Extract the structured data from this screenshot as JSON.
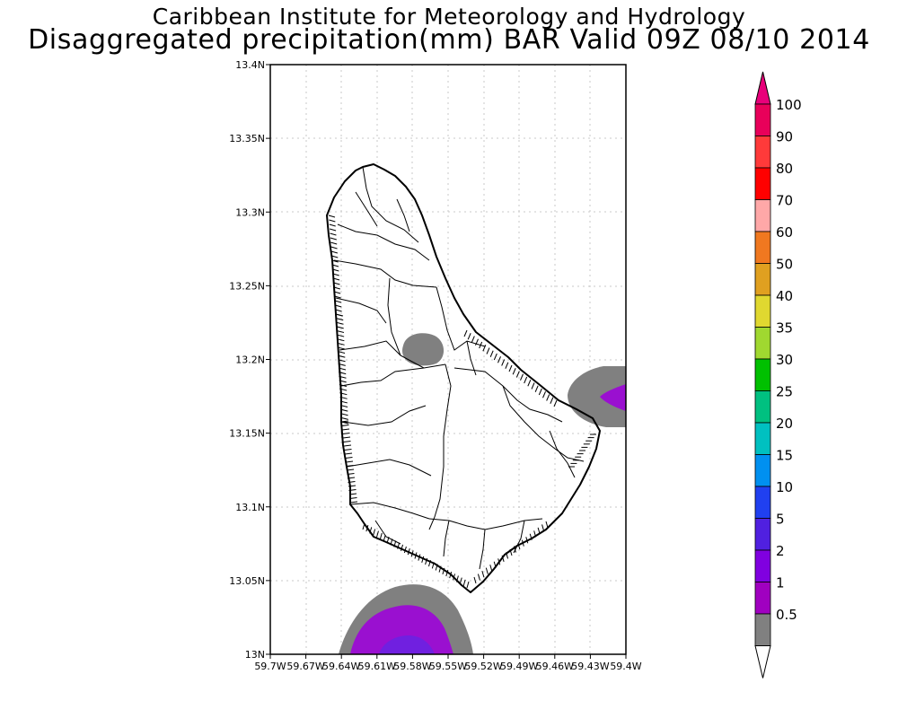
{
  "title_line1": "Caribbean Institute for Meteorology and Hydrology",
  "title_line2": "Disaggregated precipitation(mm) BAR Valid 09Z 08/10 2014",
  "lat_labels": [
    "13.4N",
    "13.35N",
    "13.3N",
    "13.25N",
    "13.2N",
    "13.15N",
    "13.1N",
    "13.05N",
    "13N"
  ],
  "lon_labels": [
    "59.7W",
    "59.67W",
    "59.64W",
    "59.61W",
    "59.58W",
    "59.55W",
    "59.52W",
    "59.49W",
    "59.46W",
    "59.43W",
    "59.4W"
  ],
  "colorbar": {
    "labels": [
      "100",
      "90",
      "80",
      "70",
      "60",
      "50",
      "40",
      "35",
      "30",
      "25",
      "20",
      "15",
      "10",
      "5",
      "2",
      "1",
      "0.5"
    ],
    "colors": [
      "#e8005a",
      "#ff3a3a",
      "#ff0000",
      "#ffa8a8",
      "#f07820",
      "#e0a020",
      "#e0d830",
      "#a0d830",
      "#00c000",
      "#00c080",
      "#00c0c0",
      "#0090f0",
      "#2040f0",
      "#5020e0",
      "#8000e0",
      "#a000c0",
      "#808080"
    ],
    "top_arrow_color": "#e8007a"
  },
  "precip_colors": {
    "light": "#808080",
    "mid": "#9a10d0",
    "heavy": "#7020e0"
  }
}
